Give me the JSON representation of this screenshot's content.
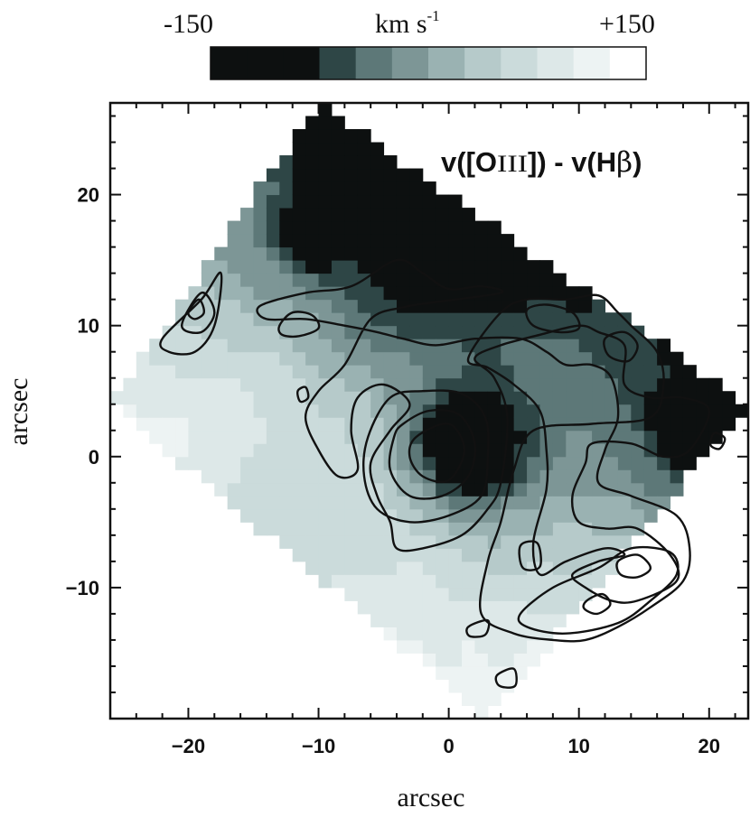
{
  "chart_data": {
    "type": "heatmap",
    "title": "v([OIII]) - v(Hβ)",
    "title_parts": {
      "prefix": "v([O",
      "ion": "III",
      "middle": "]) - v(H",
      "greek": "β",
      "suffix": ")"
    },
    "xlabel": "arcsec",
    "ylabel": "arcsec",
    "xlim": [
      -26,
      23
    ],
    "ylim": [
      -20,
      27
    ],
    "xticks": [
      -20,
      -10,
      0,
      10,
      20
    ],
    "yticks": [
      -10,
      0,
      10,
      20
    ],
    "xtick_labels": [
      "−20",
      "−10",
      "0",
      "10",
      "20"
    ],
    "ytick_labels": [
      "−10",
      "0",
      "10",
      "20"
    ],
    "colorbar": {
      "label": "km s",
      "label_exponent": "-1",
      "min_label": "-150",
      "max_label": "+150",
      "range": [
        -150,
        150
      ],
      "colors": [
        "#0d1010",
        "#0d1010",
        "#0d1010",
        "#2e4646",
        "#5d7878",
        "#7d9696",
        "#9ab2b2",
        "#b6caca",
        "#cbdbdb",
        "#dde8e8",
        "#edf3f3",
        "#ffffff"
      ]
    },
    "field_region_corners": [
      [
        -10,
        27
      ],
      [
        23,
        4
      ],
      [
        3,
        -20
      ],
      [
        -26,
        4
      ]
    ],
    "velocity_features": [
      {
        "x": -8,
        "y": 20.5,
        "value": -160,
        "r": 2.5
      },
      {
        "x": -10,
        "y": 17,
        "value": -145,
        "r": 2
      },
      {
        "x": 3,
        "y": 15.5,
        "value": -160,
        "r": 2.6
      },
      {
        "x": 1.5,
        "y": 0.8,
        "value": -170,
        "r": 3.2
      },
      {
        "x": 19,
        "y": 2,
        "value": -130,
        "r": 2.6
      },
      {
        "x": -3,
        "y": 14,
        "value": -90,
        "r": 4
      },
      {
        "x": -20,
        "y": -1.5,
        "value": 120,
        "r": 6
      },
      {
        "x": -13,
        "y": -5,
        "value": 60,
        "r": 6
      },
      {
        "x": 8,
        "y": -16,
        "value": 110,
        "r": 3
      },
      {
        "x": 14,
        "y": -10,
        "value": 70,
        "r": 2.5
      }
    ],
    "contours": [
      {
        "level": "outer",
        "points": [
          [
            -14.5,
            11.5
          ],
          [
            -11,
            12.5
          ],
          [
            -7.5,
            13
          ],
          [
            -4,
            15
          ],
          [
            -2,
            14
          ],
          [
            0,
            12.8
          ],
          [
            2.5,
            13
          ],
          [
            4,
            12.5
          ],
          [
            -1,
            11.8
          ],
          [
            -3.5,
            11.4
          ],
          [
            -6,
            10.5
          ],
          [
            -8,
            7
          ],
          [
            -10,
            5
          ],
          [
            -11,
            3
          ],
          [
            -10,
            0.5
          ],
          [
            -8.5,
            -1.5
          ],
          [
            -7,
            -1
          ],
          [
            -7.5,
            2
          ],
          [
            -7,
            4.5
          ],
          [
            -5,
            5.5
          ],
          [
            -3,
            4
          ],
          [
            -4.5,
            2
          ],
          [
            -6,
            -0.5
          ],
          [
            -5.5,
            -3
          ],
          [
            -4.5,
            -5
          ],
          [
            -4,
            -7
          ],
          [
            -2,
            -7
          ],
          [
            1,
            -6
          ],
          [
            3,
            -4
          ],
          [
            4,
            -2
          ],
          [
            4.5,
            3
          ],
          [
            3.5,
            6
          ],
          [
            2,
            7.5
          ],
          [
            4,
            8.5
          ],
          [
            7,
            9.3
          ],
          [
            10,
            10
          ],
          [
            11.5,
            9.5
          ],
          [
            13.5,
            8.5
          ],
          [
            13.5,
            5.5
          ],
          [
            15.5,
            4.5
          ],
          [
            18,
            4.5
          ],
          [
            20,
            3.5
          ],
          [
            18.5,
            0.5
          ],
          [
            16.5,
            0
          ],
          [
            14,
            1
          ],
          [
            11,
            1
          ],
          [
            10.5,
            -0.5
          ],
          [
            9.5,
            -3
          ],
          [
            10,
            -5
          ],
          [
            12.2,
            -5.5
          ],
          [
            14.5,
            -5.5
          ],
          [
            17,
            -7.5
          ],
          [
            17.5,
            -9.5
          ],
          [
            14.5,
            -11
          ],
          [
            12.5,
            -11
          ],
          [
            10.5,
            -10
          ],
          [
            9.5,
            -9
          ],
          [
            11.5,
            -8
          ],
          [
            13.5,
            -7.5
          ],
          [
            12,
            -7
          ],
          [
            9,
            -8
          ],
          [
            7,
            -9
          ],
          [
            6.5,
            -6.5
          ],
          [
            7.5,
            -2.5
          ],
          [
            7.5,
            0.5
          ],
          [
            7,
            3.5
          ],
          [
            5,
            5.5
          ],
          [
            3,
            6.8
          ],
          [
            1.5,
            7.5
          ],
          [
            4,
            11
          ],
          [
            6,
            12
          ],
          [
            9,
            12
          ],
          [
            11.5,
            12.3
          ],
          [
            13,
            11
          ],
          [
            14,
            10
          ],
          [
            16,
            8
          ],
          [
            16.5,
            5.5
          ],
          [
            15.5,
            3
          ],
          [
            11,
            2.5
          ],
          [
            6.5,
            2
          ],
          [
            5,
            -1
          ],
          [
            4,
            -5
          ],
          [
            3,
            -8
          ],
          [
            2.5,
            -12
          ],
          [
            5,
            -13.5
          ],
          [
            8,
            -14
          ],
          [
            10.5,
            -14
          ],
          [
            13,
            -13
          ],
          [
            15.5,
            -11.5
          ],
          [
            18,
            -9.5
          ],
          [
            18.5,
            -7
          ],
          [
            17.5,
            -4.5
          ],
          [
            14,
            -3
          ],
          [
            11.5,
            -2
          ],
          [
            12,
            0.5
          ],
          [
            13,
            3
          ],
          [
            12.5,
            6
          ],
          [
            11,
            7
          ],
          [
            9,
            7
          ],
          [
            7.5,
            8
          ],
          [
            5.5,
            9
          ],
          [
            2,
            9
          ],
          [
            -1,
            8.5
          ],
          [
            -3.5,
            9
          ],
          [
            -5.5,
            9.5
          ],
          [
            -8,
            10
          ],
          [
            -11,
            10.5
          ],
          [
            -14,
            10.5
          ]
        ]
      },
      {
        "level": "inner",
        "points": [
          [
            -4.5,
            4.5
          ],
          [
            -2,
            5
          ],
          [
            1,
            4.8
          ],
          [
            2.8,
            3
          ],
          [
            3,
            0
          ],
          [
            2.5,
            -3
          ],
          [
            0,
            -4.5
          ],
          [
            -3,
            -5
          ],
          [
            -5.5,
            -4
          ],
          [
            -6.5,
            -1.5
          ],
          [
            -6.2,
            1.5
          ]
        ]
      },
      {
        "level": "core",
        "points": [
          [
            -3.5,
            2.5
          ],
          [
            -1.5,
            3.5
          ],
          [
            0.8,
            3.2
          ],
          [
            2,
            1
          ],
          [
            1.5,
            -1.5
          ],
          [
            -0.5,
            -3
          ],
          [
            -3,
            -3
          ],
          [
            -4.5,
            -1
          ],
          [
            -4.2,
            1.5
          ]
        ]
      },
      {
        "level": "core2",
        "points": [
          [
            -2.5,
            1.5
          ],
          [
            0,
            2.5
          ],
          [
            1.2,
            0.5
          ],
          [
            0,
            -1.8
          ],
          [
            -2,
            -1.5
          ],
          [
            -3,
            0
          ]
        ]
      },
      {
        "level": "blob-a",
        "points": [
          [
            -13,
            10
          ],
          [
            -12,
            11
          ],
          [
            -10.5,
            10.8
          ],
          [
            -10,
            9.8
          ],
          [
            -11.5,
            9.2
          ],
          [
            -12.8,
            9.3
          ]
        ]
      },
      {
        "level": "blob-b",
        "points": [
          [
            6,
            11.2
          ],
          [
            7.5,
            11.6
          ],
          [
            9.5,
            11
          ],
          [
            10,
            9.8
          ],
          [
            8.5,
            9.5
          ],
          [
            6.5,
            10
          ]
        ]
      },
      {
        "level": "blob-c",
        "points": [
          [
            12,
            9
          ],
          [
            13.5,
            9.5
          ],
          [
            14.5,
            8.5
          ],
          [
            13.8,
            7.3
          ],
          [
            12.3,
            7.7
          ]
        ]
      },
      {
        "level": "blob-d",
        "points": [
          [
            -11.6,
            5
          ],
          [
            -11,
            5.3
          ],
          [
            -10.8,
            4.5
          ],
          [
            -11.4,
            4.2
          ]
        ]
      },
      {
        "level": "blob-e",
        "points": [
          [
            5.5,
            -6.8
          ],
          [
            6.8,
            -6.6
          ],
          [
            7,
            -8.4
          ],
          [
            5.7,
            -8.5
          ]
        ]
      },
      {
        "level": "blob-f",
        "points": [
          [
            20.4,
            1.8
          ],
          [
            21.2,
            1.4
          ],
          [
            20.8,
            0.6
          ],
          [
            20.1,
            0.9
          ]
        ]
      },
      {
        "level": "west-outer",
        "points": [
          [
            -22,
            9
          ],
          [
            -19,
            12
          ],
          [
            -17.5,
            14
          ],
          [
            -18,
            10
          ],
          [
            -19.5,
            8
          ],
          [
            -21.5,
            8
          ]
        ]
      },
      {
        "level": "west-inner",
        "points": [
          [
            -20.5,
            10
          ],
          [
            -19,
            12.5
          ],
          [
            -18,
            11
          ],
          [
            -19,
            9.5
          ]
        ]
      },
      {
        "level": "west-core",
        "points": [
          [
            -20,
            11
          ],
          [
            -19.2,
            12
          ],
          [
            -18.8,
            11
          ],
          [
            -19.5,
            10.5
          ]
        ]
      },
      {
        "level": "se-outer",
        "points": [
          [
            5.5,
            -12
          ],
          [
            8,
            -10
          ],
          [
            11.5,
            -8.5
          ],
          [
            14,
            -7
          ],
          [
            17,
            -7.3
          ],
          [
            17.5,
            -9
          ],
          [
            15.5,
            -11
          ],
          [
            13,
            -12.7
          ],
          [
            9,
            -13.5
          ],
          [
            6,
            -13
          ]
        ]
      },
      {
        "level": "se-inner",
        "points": [
          [
            13,
            -8
          ],
          [
            14.5,
            -7.5
          ],
          [
            15.5,
            -8.5
          ],
          [
            14.5,
            -9.2
          ],
          [
            13.2,
            -9
          ]
        ]
      },
      {
        "level": "se-core",
        "points": [
          [
            10.6,
            -11
          ],
          [
            11.8,
            -10.5
          ],
          [
            12.4,
            -11.3
          ],
          [
            11.4,
            -12
          ],
          [
            10.4,
            -11.6
          ]
        ]
      },
      {
        "level": "blob-g",
        "points": [
          [
            1.5,
            -13
          ],
          [
            3,
            -12.5
          ],
          [
            2.8,
            -13.6
          ],
          [
            1.6,
            -13.7
          ]
        ]
      },
      {
        "level": "blob-h",
        "points": [
          [
            3.7,
            -16.7
          ],
          [
            5,
            -16.2
          ],
          [
            5.1,
            -17.5
          ],
          [
            3.9,
            -17.5
          ]
        ]
      }
    ]
  }
}
